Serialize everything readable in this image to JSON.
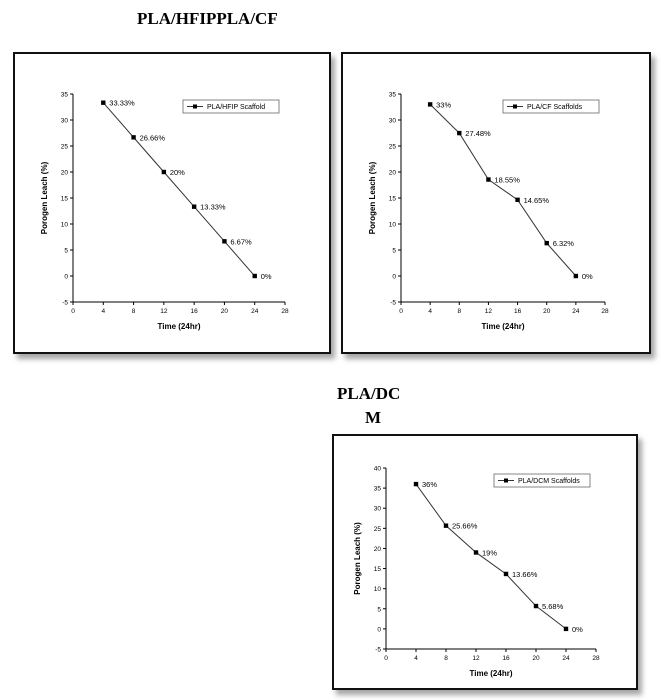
{
  "headings": {
    "top_left": "PLA/HFIPPLA/CF",
    "bottom_line1": "PLA/DC",
    "bottom_line2": "M"
  },
  "colors": {
    "ink": "#000000",
    "line": "#333333",
    "frame": "#111111"
  },
  "chart_data": [
    {
      "type": "line",
      "xlabel": "Time (24hr)",
      "ylabel": "Porogen Leach (%)",
      "xlim": [
        0,
        28
      ],
      "ylim": [
        -5,
        35
      ],
      "xticks": [
        0,
        4,
        8,
        12,
        16,
        20,
        24,
        28
      ],
      "yticks": [
        -5,
        0,
        5,
        10,
        15,
        20,
        25,
        30,
        35
      ],
      "legend_position": "top-right",
      "series": [
        {
          "name": "PLA/HFIP Scaffold",
          "x": [
            4,
            8,
            12,
            16,
            20,
            24
          ],
          "y": [
            33.33,
            26.66,
            20,
            13.33,
            6.67,
            0
          ],
          "labels": [
            "33.33%",
            "26.66%",
            "20%",
            "13.33%",
            "6.67%",
            "0%"
          ]
        }
      ]
    },
    {
      "type": "line",
      "xlabel": "Time (24hr)",
      "ylabel": "Porogen Leach (%)",
      "xlim": [
        0,
        28
      ],
      "ylim": [
        -5,
        35
      ],
      "xticks": [
        0,
        4,
        8,
        12,
        16,
        20,
        24,
        28
      ],
      "yticks": [
        -5,
        0,
        5,
        10,
        15,
        20,
        25,
        30,
        35
      ],
      "legend_position": "top-right",
      "series": [
        {
          "name": "PLA/CF Scaffolds",
          "x": [
            4,
            8,
            12,
            16,
            20,
            24
          ],
          "y": [
            33,
            27.48,
            18.55,
            14.65,
            6.32,
            0
          ],
          "labels": [
            "33%",
            "27.48%",
            "18.55%",
            "14.65%",
            "6.32%",
            "0%"
          ]
        }
      ]
    },
    {
      "type": "line",
      "xlabel": "Time (24hr)",
      "ylabel": "Porogen Leach (%)",
      "xlim": [
        0,
        28
      ],
      "ylim": [
        -5,
        40
      ],
      "xticks": [
        0,
        4,
        8,
        12,
        16,
        20,
        24,
        28
      ],
      "yticks": [
        -5,
        0,
        5,
        10,
        15,
        20,
        25,
        30,
        35,
        40
      ],
      "legend_position": "top-right",
      "series": [
        {
          "name": "PLA/DCM Scaffolds",
          "x": [
            4,
            8,
            12,
            16,
            20,
            24
          ],
          "y": [
            36,
            25.66,
            19,
            13.66,
            5.68,
            0
          ],
          "labels": [
            "36%",
            "25.66%",
            "19%",
            "13.66%",
            "5.68%",
            "0%"
          ]
        }
      ]
    }
  ]
}
